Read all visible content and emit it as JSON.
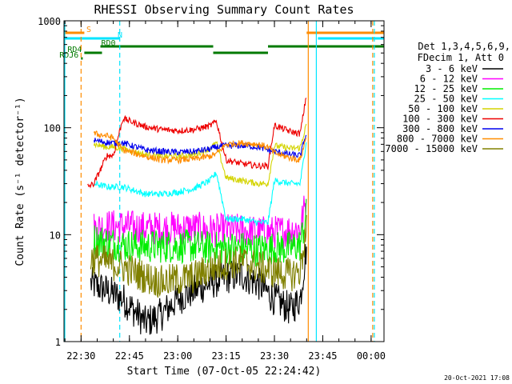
{
  "chart_data": {
    "type": "line",
    "title": "RHESSI Observing Summary Count Rates",
    "xlabel": "Start Time (07-Oct-05 22:24:42)",
    "ylabel": "Count Rate (s⁻¹ detector⁻¹)",
    "y_scale": "log",
    "xlim": [
      "22:24:42",
      "00:04:00"
    ],
    "ylim": [
      1,
      1000
    ],
    "x_ticks": [
      "22:30",
      "22:45",
      "23:00",
      "23:15",
      "23:30",
      "23:45",
      "00:00"
    ],
    "y_ticks": [
      "1",
      "10",
      "100",
      "1000"
    ],
    "footer_date": "20-Oct-2021 17:08",
    "legend": {
      "header_line1": "Det 1,3,4,5,6,9,",
      "header_line2": "FDecim 1, Att 0",
      "placement": "right"
    },
    "flags": [
      {
        "label": "S",
        "color": "#ff8c00",
        "segments": [
          [
            "22:24:42",
            "22:31:00"
          ],
          [
            "23:40:00",
            "00:04:00"
          ]
        ]
      },
      {
        "label": "N",
        "color": "#00e5ff",
        "segments": [
          [
            "22:24:42",
            "22:42:00"
          ],
          [
            "23:43:30",
            "00:04:00"
          ]
        ]
      },
      {
        "label": "RD0",
        "color": "#007a00",
        "segments": [
          [
            "22:36:00",
            "23:11:00"
          ],
          [
            "23:11:00",
            "23:28:00"
          ],
          [
            "23:28:00",
            "00:04:00"
          ]
        ]
      },
      {
        "label": "RD4",
        "color": "#007a00",
        "segments": [
          [
            "22:31:00",
            "22:36:30"
          ]
        ]
      },
      {
        "label": "RDJ6",
        "color": "#007a00",
        "segments": [
          [
            "22:30:00",
            "22:30:30"
          ]
        ]
      }
    ],
    "vlines": [
      {
        "time": "22:24:42",
        "color": "#00e5ff",
        "style": "solid"
      },
      {
        "time": "22:30:00",
        "color": "#ff8c00",
        "style": "dashed"
      },
      {
        "time": "22:42:00",
        "color": "#00e5ff",
        "style": "dashed"
      },
      {
        "time": "23:40:30",
        "color": "#ff8c00",
        "style": "solid"
      },
      {
        "time": "23:43:00",
        "color": "#00e5ff",
        "style": "solid"
      },
      {
        "time": "00:00:30",
        "color": "#ff8c00",
        "style": "dashed"
      },
      {
        "time": "00:01:00",
        "color": "#00e5ff",
        "style": "dashed"
      }
    ],
    "series": [
      {
        "name": "3 - 6 keV",
        "color": "#000000",
        "x": [
          "22:33",
          "22:38",
          "22:43",
          "22:50",
          "22:55",
          "23:00",
          "23:05",
          "23:10",
          "23:15",
          "23:20",
          "23:25",
          "23:30",
          "23:35",
          "23:38",
          "23:40"
        ],
        "values": [
          3.5,
          3.0,
          2.5,
          1.5,
          1.8,
          2.5,
          3.0,
          3.5,
          4.0,
          4.2,
          3.5,
          2.5,
          2.0,
          2.5,
          8
        ]
      },
      {
        "name": "6 - 12 keV",
        "color": "#ff00ff",
        "x": [
          "22:34",
          "22:38",
          "22:43",
          "22:50",
          "22:55",
          "23:00",
          "23:05",
          "23:10",
          "23:15",
          "23:20",
          "23:25",
          "23:30",
          "23:35",
          "23:38",
          "23:40"
        ],
        "values": [
          11.5,
          12,
          12,
          11.5,
          11.5,
          11.5,
          11.5,
          11,
          11,
          11,
          10.5,
          10.5,
          11,
          11.5,
          22
        ]
      },
      {
        "name": "12 - 25 keV",
        "color": "#00ee00",
        "x": [
          "22:34",
          "22:38",
          "22:43",
          "22:50",
          "22:55",
          "23:00",
          "23:05",
          "23:10",
          "23:15",
          "23:20",
          "23:25",
          "23:30",
          "23:35",
          "23:38",
          "23:40"
        ],
        "values": [
          9,
          8.5,
          8,
          7.8,
          7.8,
          7.8,
          7.8,
          7.5,
          7.5,
          7.5,
          7.2,
          7.5,
          7.5,
          8,
          16
        ]
      },
      {
        "name": "25 - 50 keV",
        "color": "#00ffff",
        "x": [
          "22:34",
          "22:38",
          "22:40",
          "22:43",
          "22:50",
          "22:55",
          "23:00",
          "23:05",
          "23:10",
          "23:12",
          "23:15",
          "23:20",
          "23:25",
          "23:28",
          "23:30",
          "23:35",
          "23:38",
          "23:40"
        ],
        "values": [
          30,
          28,
          28,
          28,
          24,
          24,
          25,
          27,
          32,
          38,
          14,
          14,
          13,
          13,
          32,
          30,
          30,
          80
        ]
      },
      {
        "name": "50 - 100 keV",
        "color": "#d4d400",
        "x": [
          "22:34",
          "22:38",
          "22:40",
          "22:43",
          "22:50",
          "22:55",
          "23:00",
          "23:05",
          "23:10",
          "23:12",
          "23:15",
          "23:20",
          "23:25",
          "23:28",
          "23:30",
          "23:35",
          "23:38",
          "23:40"
        ],
        "values": [
          70,
          66,
          66,
          64,
          56,
          54,
          54,
          56,
          64,
          72,
          34,
          32,
          30,
          30,
          68,
          64,
          65,
          110
        ]
      },
      {
        "name": "100 - 300 keV",
        "color": "#ee0000",
        "x": [
          "22:32",
          "22:34",
          "22:38",
          "22:40",
          "22:43",
          "22:50",
          "22:55",
          "23:00",
          "23:05",
          "23:10",
          "23:12",
          "23:15",
          "23:20",
          "23:25",
          "23:28",
          "23:30",
          "23:35",
          "23:38",
          "23:40"
        ],
        "values": [
          28,
          30,
          55,
          55,
          122,
          102,
          96,
          94,
          96,
          104,
          115,
          50,
          46,
          44,
          44,
          105,
          92,
          88,
          210
        ]
      },
      {
        "name": "300 - 800 keV",
        "color": "#0000ee",
        "x": [
          "22:34",
          "22:38",
          "22:40",
          "22:43",
          "22:50",
          "22:55",
          "23:00",
          "23:05",
          "23:10",
          "23:12",
          "23:15",
          "23:20",
          "23:25",
          "23:28",
          "23:30",
          "23:35",
          "23:38",
          "23:40"
        ],
        "values": [
          76,
          73,
          72,
          72,
          62,
          60,
          59,
          60,
          63,
          66,
          68,
          68,
          66,
          62,
          60,
          56,
          55,
          90
        ]
      },
      {
        "name": "800 - 7000 keV",
        "color": "#ff8c00",
        "x": [
          "22:34",
          "22:38",
          "22:40",
          "22:43",
          "22:50",
          "22:55",
          "23:00",
          "23:05",
          "23:10",
          "23:12",
          "23:15",
          "23:20",
          "23:25",
          "23:28",
          "23:30",
          "23:35",
          "23:38",
          "23:40"
        ],
        "values": [
          88,
          84,
          80,
          62,
          54,
          50,
          50,
          51,
          54,
          57,
          70,
          72,
          70,
          66,
          58,
          52,
          50,
          85
        ]
      },
      {
        "name": "7000 - 15000 keV",
        "color": "#808000",
        "x": [
          "22:33",
          "22:38",
          "22:43",
          "22:50",
          "22:55",
          "23:00",
          "23:05",
          "23:10",
          "23:15",
          "23:20",
          "23:25",
          "23:30",
          "23:35",
          "23:38",
          "23:40"
        ],
        "values": [
          6,
          5.5,
          5,
          4.0,
          3.6,
          3.8,
          4.0,
          4.8,
          5.4,
          5.6,
          5.0,
          4.5,
          4.2,
          4.6,
          12
        ]
      }
    ]
  }
}
